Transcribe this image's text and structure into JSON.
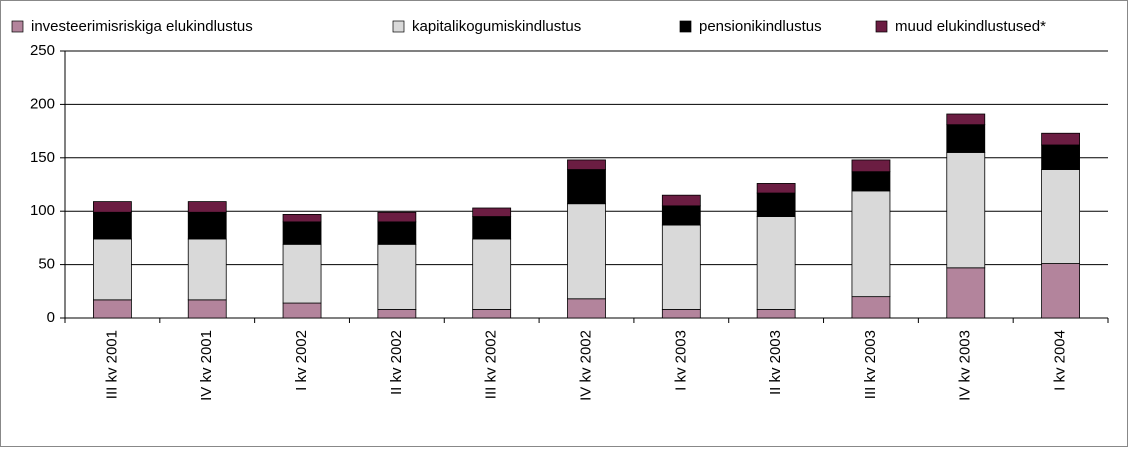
{
  "chart_data": {
    "type": "stacked-bar",
    "categories": [
      "III kv 2001",
      "IV kv 2001",
      "I kv 2002",
      "II kv 2002",
      "III kv 2002",
      "IV kv 2002",
      "I kv 2003",
      "II kv 2003",
      "III kv 2003",
      "IV kv 2003",
      "I kv 2004"
    ],
    "series": [
      {
        "name": "investeerimisriskiga elukindlustus",
        "color": "#b3849c",
        "values": [
          17,
          17,
          14,
          8,
          8,
          18,
          8,
          8,
          20,
          47,
          51
        ]
      },
      {
        "name": "kapitalikogumiskindlustus",
        "color": "#d9d9d9",
        "values": [
          57,
          57,
          55,
          61,
          66,
          89,
          79,
          87,
          99,
          108,
          88
        ]
      },
      {
        "name": "pensionikindlustus",
        "color": "#000000",
        "values": [
          25,
          25,
          21,
          21,
          21,
          32,
          18,
          22,
          18,
          26,
          23
        ]
      },
      {
        "name": "muud elukindlustused*",
        "color": "#6b1d42",
        "values": [
          10,
          10,
          7,
          9,
          8,
          9,
          10,
          9,
          11,
          10,
          11
        ]
      }
    ],
    "ylim": [
      0,
      250
    ],
    "yticks": [
      0,
      50,
      100,
      150,
      200,
      250
    ],
    "grid": true,
    "legend": "top"
  }
}
